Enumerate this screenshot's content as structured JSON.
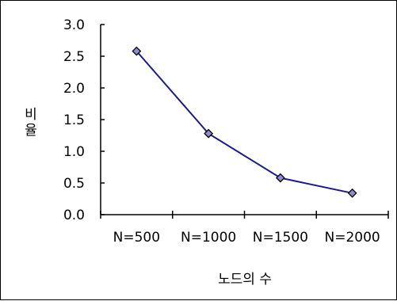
{
  "chart_data": {
    "type": "line",
    "title": "",
    "xlabel": "노드의 수",
    "ylabel": "비율",
    "categories": [
      "N=500",
      "N=1000",
      "N=1500",
      "N=2000"
    ],
    "series": [
      {
        "values": [
          2.58,
          1.28,
          0.58,
          0.34
        ]
      }
    ],
    "ylim": [
      0,
      3.0
    ],
    "yticks": [
      "0.0",
      "0.5",
      "1.0",
      "1.5",
      "2.0",
      "2.5",
      "3.0"
    ],
    "grid": false,
    "legend": "none",
    "line_color": "#1a1a8c",
    "marker": "diamond",
    "marker_fill": "#8c8cd0"
  }
}
